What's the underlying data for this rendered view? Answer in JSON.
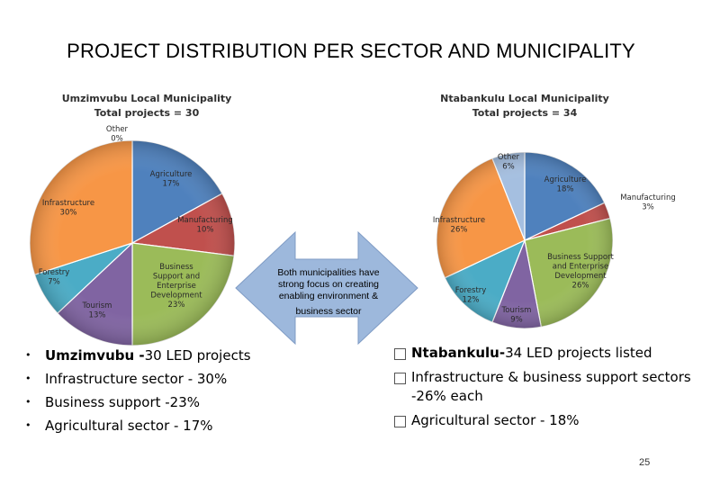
{
  "slide": {
    "title": "PROJECT DISTRIBUTION PER SECTOR AND MUNICIPALITY",
    "page_number": "25"
  },
  "arrow": {
    "lines": [
      "Both municipalities have",
      "strong focus on creating",
      "enabling environment &",
      "business sector"
    ],
    "color": "#9db8dc"
  },
  "chart_data": [
    {
      "type": "pie",
      "title": [
        "Umzimvubu Local Municipality",
        "Total projects = 30"
      ],
      "slices": [
        {
          "label": "Agriculture",
          "value": 17,
          "pct": "17%",
          "color": "#4f81bd"
        },
        {
          "label": "Manufacturing",
          "value": 10,
          "pct": "10%",
          "color": "#c0504d"
        },
        {
          "label": "Business Support and Enterprise Development",
          "value": 23,
          "pct": "23%",
          "color": "#9bbb59"
        },
        {
          "label": "Tourism",
          "value": 13,
          "pct": "13%",
          "color": "#8064a2"
        },
        {
          "label": "Forestry",
          "value": 7,
          "pct": "7%",
          "color": "#4bacc6"
        },
        {
          "label": "Infrastructure",
          "value": 30,
          "pct": "30%",
          "color": "#f79646"
        },
        {
          "label": "Other",
          "value": 0,
          "pct": "0%",
          "color": "#a5bfe0"
        }
      ]
    },
    {
      "type": "pie",
      "title": [
        "Ntabankulu Local Municipality",
        "Total projects = 34"
      ],
      "slices": [
        {
          "label": "Agriculture",
          "value": 18,
          "pct": "18%",
          "color": "#4f81bd"
        },
        {
          "label": "Manufacturing",
          "value": 3,
          "pct": "3%",
          "color": "#c0504d"
        },
        {
          "label": "Business Support and Enterprise Development",
          "value": 26,
          "pct": "26%",
          "color": "#9bbb59"
        },
        {
          "label": "Tourism",
          "value": 9,
          "pct": "9%",
          "color": "#8064a2"
        },
        {
          "label": "Forestry",
          "value": 12,
          "pct": "12%",
          "color": "#4bacc6"
        },
        {
          "label": "Infrastructure",
          "value": 26,
          "pct": "26%",
          "color": "#f79646"
        },
        {
          "label": "Other",
          "value": 6,
          "pct": "6%",
          "color": "#a5bfe0"
        }
      ]
    }
  ],
  "left_list": {
    "items": [
      {
        "bold": "Umzimvubu -",
        "text": "30 LED projects"
      },
      {
        "bold": "",
        "text": "Infrastructure sector - 30%"
      },
      {
        "bold": "",
        "text": "Business support -23%"
      },
      {
        "bold": "",
        "text": "Agricultural sector - 17%"
      }
    ]
  },
  "right_list": {
    "items": [
      {
        "bold": "Ntabankulu-",
        "text": "34 LED projects listed"
      },
      {
        "bold": "",
        "text": "Infrastructure & business support sectors -26% each"
      },
      {
        "bold": "",
        "text": "Agricultural sector - 18%"
      }
    ]
  }
}
